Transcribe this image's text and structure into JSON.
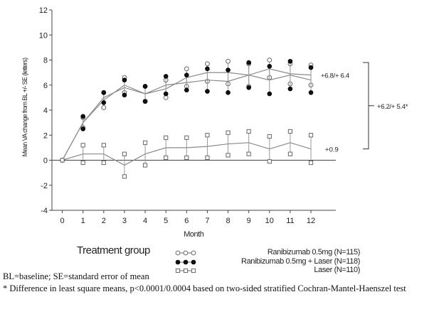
{
  "chart_data": {
    "type": "line",
    "title": "",
    "xlabel": "Month",
    "ylabel": "Mean VA change from BL +/- SE (letters)",
    "x": [
      0,
      1,
      2,
      3,
      4,
      5,
      6,
      7,
      8,
      9,
      10,
      11,
      12
    ],
    "xlim": [
      -0.5,
      13.2
    ],
    "ylim": [
      -4,
      12
    ],
    "yticks": [
      -4,
      -2,
      0,
      2,
      4,
      6,
      8,
      10,
      12
    ],
    "grid": false,
    "reference_line": 0,
    "series": [
      {
        "name": "Ranibizumab 0.5mg (N=115)",
        "marker": "open-circle",
        "values": [
          0,
          3.0,
          4.8,
          6.0,
          5.3,
          5.7,
          6.6,
          7.0,
          7.0,
          6.8,
          7.3,
          6.9,
          6.8
        ],
        "se": [
          0,
          0.4,
          0.6,
          0.6,
          0.6,
          0.7,
          0.7,
          0.7,
          0.9,
          0.9,
          0.7,
          0.8,
          0.8
        ]
      },
      {
        "name": "Ranibizumab 0.5mg + Laser (N=118)",
        "marker": "filled-circle",
        "values": [
          0,
          3.0,
          5.0,
          5.8,
          5.3,
          6.0,
          6.2,
          6.4,
          6.3,
          6.8,
          6.4,
          6.8,
          6.4
        ],
        "se": [
          0,
          0.5,
          0.4,
          0.6,
          0.6,
          0.7,
          0.6,
          0.9,
          0.9,
          1.0,
          1.1,
          1.1,
          1.0
        ]
      },
      {
        "name": "Laser (N=110)",
        "marker": "open-square",
        "values": [
          0,
          0.5,
          0.5,
          -0.4,
          0.5,
          1.0,
          1.0,
          1.1,
          1.3,
          1.4,
          0.9,
          1.4,
          0.9
        ],
        "se": [
          0,
          0.7,
          0.7,
          0.9,
          0.9,
          0.8,
          0.8,
          0.9,
          0.9,
          0.9,
          1.0,
          0.9,
          1.1
        ]
      }
    ],
    "annotations": [
      {
        "text": "+6.8/+ 6.4",
        "bracket_from": 6.8,
        "bracket_to": 6.8
      },
      {
        "text": "+6.2/+ 5.4*",
        "bracket_from": 0.9,
        "bracket_to": 7.8
      },
      {
        "text": "+0.9"
      }
    ]
  },
  "legend": {
    "title": "Treatment group",
    "entries": [
      {
        "label": "Ranibizumab 0.5mg (N=115)",
        "marker": "open-circle"
      },
      {
        "label": "Ranibizumab 0.5mg + Laser (N=118)",
        "marker": "filled-circle"
      },
      {
        "label": "Laser (N=110)",
        "marker": "open-square"
      }
    ]
  },
  "footnotes": {
    "abbreviations": "BL=baseline; SE=standard error of mean",
    "difference": "* Difference in least square means, p<0.0001/0.0004 based on two-sided stratified Cochran-Mantel-Haenszel test"
  },
  "colors": {
    "line": "#8a8a8a",
    "marker_fill_dark": "#111111",
    "marker_open": "#ffffff",
    "axis": "#444444"
  }
}
